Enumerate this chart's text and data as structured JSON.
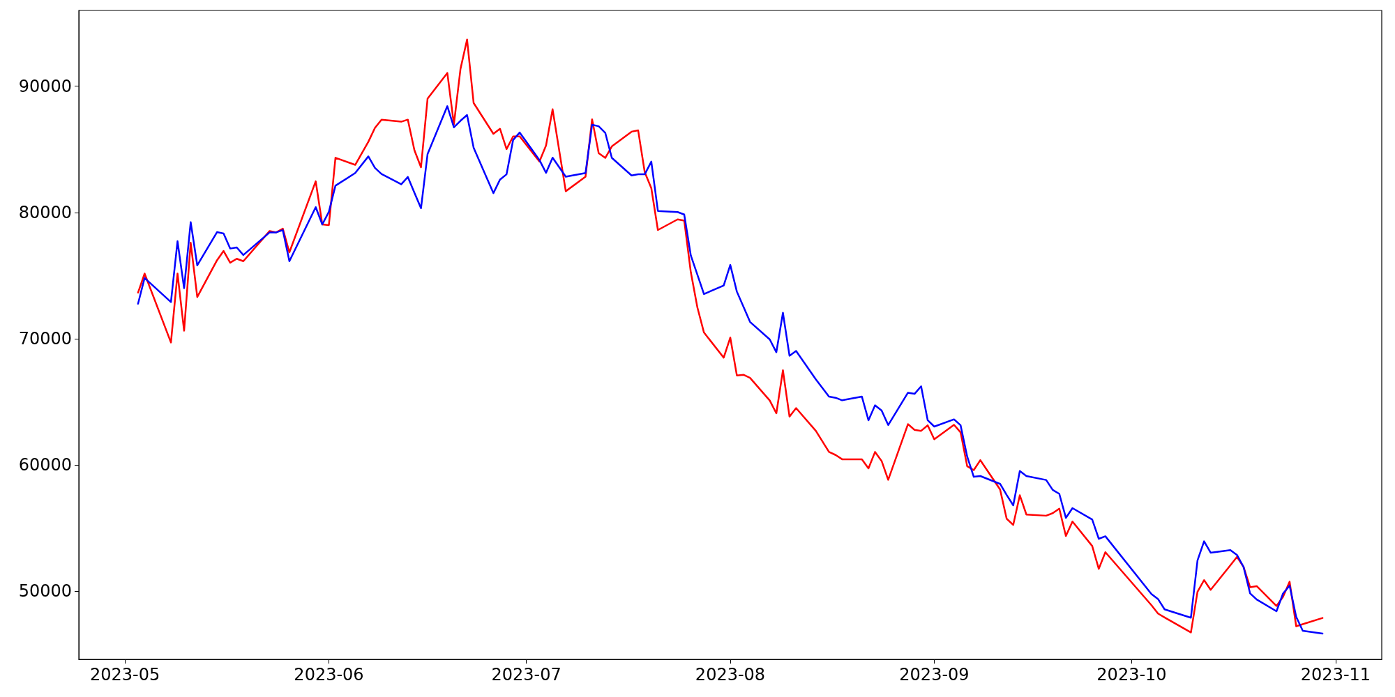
{
  "chart_data": {
    "type": "line",
    "x": [
      "2023-05-03",
      "2023-05-04",
      "2023-05-08",
      "2023-05-09",
      "2023-05-10",
      "2023-05-11",
      "2023-05-12",
      "2023-05-15",
      "2023-05-16",
      "2023-05-17",
      "2023-05-18",
      "2023-05-19",
      "2023-05-23",
      "2023-05-24",
      "2023-05-25",
      "2023-05-26",
      "2023-05-30",
      "2023-05-31",
      "2023-06-01",
      "2023-06-02",
      "2023-06-05",
      "2023-06-07",
      "2023-06-08",
      "2023-06-09",
      "2023-06-12",
      "2023-06-13",
      "2023-06-14",
      "2023-06-15",
      "2023-06-16",
      "2023-06-19",
      "2023-06-20",
      "2023-06-21",
      "2023-06-22",
      "2023-06-23",
      "2023-06-26",
      "2023-06-27",
      "2023-06-28",
      "2023-06-29",
      "2023-06-30",
      "2023-07-03",
      "2023-07-04",
      "2023-07-05",
      "2023-07-07",
      "2023-07-10",
      "2023-07-11",
      "2023-07-12",
      "2023-07-13",
      "2023-07-14",
      "2023-07-17",
      "2023-07-18",
      "2023-07-19",
      "2023-07-20",
      "2023-07-21",
      "2023-07-24",
      "2023-07-25",
      "2023-07-26",
      "2023-07-27",
      "2023-07-28",
      "2023-07-31",
      "2023-08-01",
      "2023-08-02",
      "2023-08-03",
      "2023-08-04",
      "2023-08-07",
      "2023-08-08",
      "2023-08-09",
      "2023-08-10",
      "2023-08-11",
      "2023-08-14",
      "2023-08-16",
      "2023-08-17",
      "2023-08-18",
      "2023-08-21",
      "2023-08-22",
      "2023-08-23",
      "2023-08-24",
      "2023-08-25",
      "2023-08-28",
      "2023-08-29",
      "2023-08-30",
      "2023-08-31",
      "2023-09-01",
      "2023-09-04",
      "2023-09-05",
      "2023-09-06",
      "2023-09-07",
      "2023-09-08",
      "2023-09-11",
      "2023-09-12",
      "2023-09-13",
      "2023-09-14",
      "2023-09-15",
      "2023-09-18",
      "2023-09-19",
      "2023-09-20",
      "2023-09-21",
      "2023-09-22",
      "2023-09-25",
      "2023-09-26",
      "2023-09-27",
      "2023-10-04",
      "2023-10-05",
      "2023-10-06",
      "2023-10-10",
      "2023-10-11",
      "2023-10-12",
      "2023-10-13",
      "2023-10-16",
      "2023-10-17",
      "2023-10-18",
      "2023-10-19",
      "2023-10-20",
      "2023-10-23",
      "2023-10-24",
      "2023-10-25",
      "2023-10-26",
      "2023-10-27",
      "2023-10-30"
    ],
    "series": [
      {
        "color": "#ff0000",
        "values": [
          73650,
          75160,
          69700,
          75160,
          70630,
          77600,
          73300,
          76210,
          76950,
          76020,
          76330,
          76140,
          78530,
          78420,
          78720,
          76840,
          82470,
          79050,
          79000,
          84330,
          83770,
          85600,
          86700,
          87350,
          87190,
          87350,
          84930,
          83580,
          89020,
          91050,
          86980,
          91370,
          93700,
          88670,
          86230,
          86630,
          85020,
          86020,
          86020,
          84030,
          85300,
          88170,
          81680,
          82830,
          87380,
          84700,
          84320,
          85230,
          86400,
          86500,
          83190,
          81920,
          78610,
          79450,
          79360,
          75280,
          72480,
          70490,
          68500,
          70090,
          67090,
          67140,
          66900,
          65100,
          64090,
          67500,
          63830,
          64500,
          62700,
          61030,
          60790,
          60450,
          60450,
          59730,
          61030,
          60310,
          58820,
          63230,
          62780,
          62700,
          63140,
          62030,
          63180,
          62580,
          59900,
          59590,
          60380,
          58060,
          55740,
          55250,
          57600,
          56070,
          55980,
          56180,
          56540,
          54370,
          55520,
          53580,
          51770,
          53090,
          48890,
          48230,
          47920,
          46730,
          49950,
          50880,
          50110,
          52050,
          52720,
          51920,
          50310,
          50400,
          48830,
          49560,
          50750,
          47220,
          47390,
          47880
        ]
      },
      {
        "color": "#0000ff",
        "values": [
          72770,
          74810,
          72900,
          77720,
          74000,
          79230,
          75810,
          78440,
          78330,
          77140,
          77230,
          76630,
          78420,
          78420,
          78600,
          76140,
          80420,
          79050,
          80050,
          82120,
          83120,
          84440,
          83530,
          83050,
          82230,
          82810,
          81560,
          80330,
          84630,
          88420,
          86740,
          87260,
          87720,
          85120,
          81530,
          82600,
          83020,
          85740,
          86330,
          84150,
          83140,
          84340,
          82830,
          83120,
          86950,
          86830,
          86310,
          84320,
          82930,
          83020,
          83020,
          84030,
          80120,
          80030,
          79840,
          76600,
          75070,
          73540,
          74210,
          75840,
          73730,
          72530,
          71330,
          69940,
          68930,
          72050,
          68650,
          69030,
          66780,
          65410,
          65320,
          65120,
          65410,
          63540,
          64720,
          64310,
          63160,
          65720,
          65630,
          66230,
          63540,
          63040,
          63610,
          63140,
          60670,
          59060,
          59120,
          58500,
          57620,
          56800,
          59520,
          59120,
          58810,
          58020,
          57710,
          55810,
          56580,
          55680,
          54150,
          54350,
          49780,
          49380,
          48560,
          47900,
          52430,
          53950,
          53050,
          53250,
          52870,
          51920,
          49820,
          49340,
          48410,
          49820,
          50440,
          47970,
          46860,
          46640
        ]
      }
    ],
    "xlim": [
      "2023-04-24",
      "2023-11-08"
    ],
    "xticks": [
      "2023-05",
      "2023-06",
      "2023-07",
      "2023-08",
      "2023-09",
      "2023-10",
      "2023-11"
    ],
    "ylim": [
      44600,
      96000
    ],
    "yticks": [
      50000,
      60000,
      70000,
      80000,
      90000
    ],
    "grid": false,
    "marker": "none",
    "line_style": "solid"
  }
}
